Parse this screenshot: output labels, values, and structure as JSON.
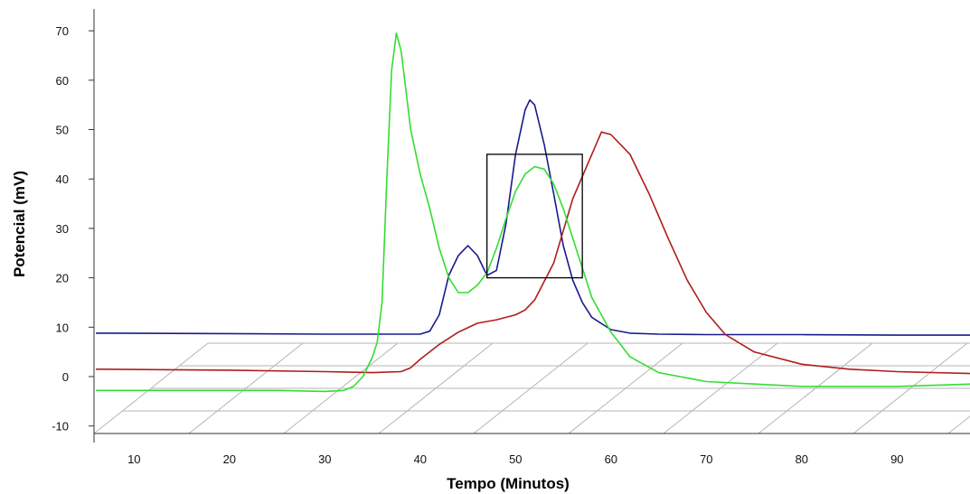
{
  "chart_data": {
    "type": "line",
    "title": "",
    "xlabel": "Tempo (Minutos)",
    "ylabel": "Potencial (mV)",
    "xlim": [
      6,
      98
    ],
    "ylim": [
      -12,
      75
    ],
    "x_ticks": [
      10,
      20,
      30,
      40,
      50,
      60,
      70,
      80,
      90
    ],
    "y_ticks": [
      -10,
      0,
      10,
      20,
      30,
      40,
      50,
      60,
      70
    ],
    "pseudo_3d_floor": true,
    "highlight_box": {
      "x": [
        47,
        57
      ],
      "y": [
        20,
        45
      ]
    },
    "series": [
      {
        "color": "#1a1a8c",
        "x": [
          6,
          20,
          30,
          40,
          41,
          42,
          43,
          44,
          45,
          46,
          47,
          48,
          49,
          50,
          51,
          51.5,
          52,
          53,
          54,
          55,
          56,
          57,
          58,
          60,
          62,
          65,
          70,
          80,
          90,
          98
        ],
        "y": [
          8.8,
          8.7,
          8.6,
          8.6,
          9.2,
          12.5,
          20.5,
          24.5,
          26.5,
          24.5,
          20.5,
          21.5,
          31,
          45,
          54,
          56,
          55,
          47,
          37,
          26.5,
          19.5,
          15,
          12,
          9.5,
          8.8,
          8.6,
          8.5,
          8.5,
          8.4,
          8.4
        ]
      },
      {
        "color": "#b01c1c",
        "x": [
          6,
          20,
          30,
          35,
          38,
          39,
          40,
          42,
          44,
          46,
          48,
          50,
          51,
          52,
          54,
          56,
          58,
          59,
          60,
          62,
          64,
          66,
          68,
          70,
          72,
          75,
          80,
          85,
          90,
          98
        ],
        "y": [
          1.5,
          1.3,
          1,
          0.8,
          1,
          1.8,
          3.5,
          6.5,
          9,
          10.8,
          11.5,
          12.5,
          13.5,
          15.5,
          23,
          36,
          45,
          49.5,
          49,
          45,
          37,
          28,
          19.5,
          13,
          8.5,
          5,
          2.5,
          1.5,
          1,
          0.6
        ]
      },
      {
        "color": "#33dd33",
        "x": [
          6,
          25,
          30,
          32,
          33,
          34,
          35,
          35.5,
          36,
          36.5,
          37,
          37.5,
          38,
          38.5,
          39,
          40,
          41,
          42,
          43,
          44,
          45,
          46,
          47,
          48,
          49,
          50,
          51,
          52,
          53,
          54,
          55,
          56,
          57,
          58,
          60,
          62,
          65,
          70,
          75,
          80,
          90,
          98
        ],
        "y": [
          -2.8,
          -2.8,
          -3,
          -2.8,
          -2,
          0,
          4,
          7,
          15,
          40,
          62,
          69.5,
          66,
          58,
          50,
          41,
          34,
          26,
          20,
          17,
          17,
          18.5,
          21,
          26,
          32,
          37.5,
          41,
          42.5,
          42,
          39,
          34,
          28,
          22,
          16,
          9,
          4,
          0.8,
          -1,
          -1.5,
          -2,
          -2,
          -1.5
        ]
      }
    ]
  }
}
